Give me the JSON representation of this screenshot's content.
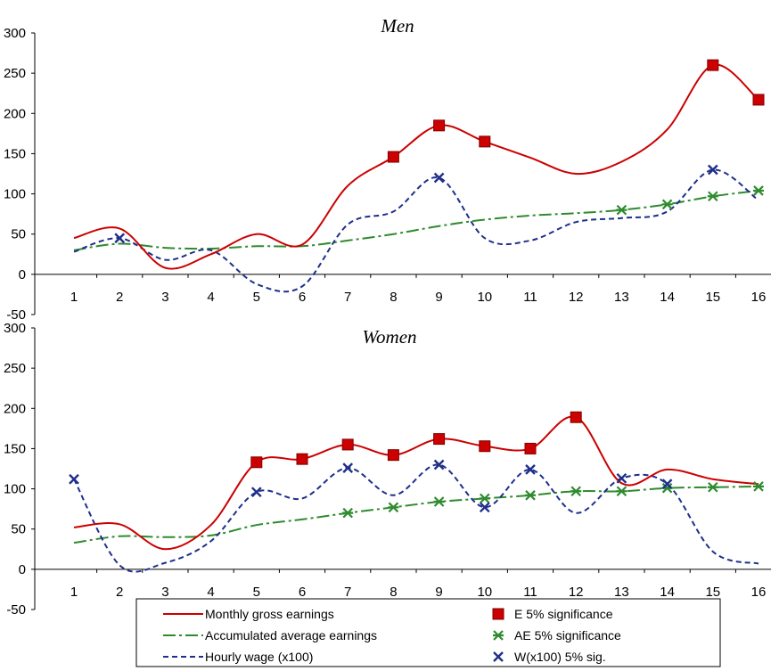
{
  "chart_data": [
    {
      "type": "line",
      "title": "Men",
      "categories": [
        "1",
        "2",
        "3",
        "4",
        "5",
        "6",
        "7",
        "8",
        "9",
        "10",
        "11",
        "12",
        "13",
        "14",
        "15",
        "16"
      ],
      "ylim": [
        -50,
        300
      ],
      "yticks": [
        -50,
        0,
        50,
        100,
        150,
        200,
        250,
        300
      ],
      "series": [
        {
          "name": "Monthly gross earnings",
          "color": "#cc0000",
          "style": "solid",
          "values": [
            45,
            57,
            8,
            25,
            50,
            37,
            110,
            146,
            185,
            165,
            145,
            125,
            140,
            180,
            260,
            217
          ]
        },
        {
          "name": "Accumulated average earnings",
          "color": "#2e8b2e",
          "style": "dashdot",
          "values": [
            30,
            38,
            33,
            32,
            35,
            35,
            42,
            50,
            60,
            68,
            73,
            76,
            80,
            87,
            97,
            104
          ]
        },
        {
          "name": "Hourly wage (x100)",
          "color": "#1f2f8a",
          "style": "dashed",
          "values": [
            28,
            45,
            18,
            30,
            -12,
            -15,
            62,
            78,
            120,
            45,
            42,
            65,
            70,
            78,
            130,
            92
          ]
        }
      ],
      "markers": {
        "E 5% significance": [
          8,
          9,
          10,
          15,
          16
        ],
        "AE 5% significance": [
          13,
          14,
          15,
          16
        ],
        "W(x100) 5% sig.": [
          2,
          9,
          15
        ]
      }
    },
    {
      "type": "line",
      "title": "Women",
      "categories": [
        "1",
        "2",
        "3",
        "4",
        "5",
        "6",
        "7",
        "8",
        "9",
        "10",
        "11",
        "12",
        "13",
        "14",
        "15",
        "16"
      ],
      "ylim": [
        -50,
        300
      ],
      "yticks": [
        -50,
        0,
        50,
        100,
        150,
        200,
        250,
        300
      ],
      "series": [
        {
          "name": "Monthly gross earnings",
          "color": "#cc0000",
          "style": "solid",
          "values": [
            52,
            56,
            25,
            55,
            133,
            137,
            155,
            142,
            162,
            153,
            150,
            189,
            107,
            124,
            112,
            106
          ]
        },
        {
          "name": "Accumulated average earnings",
          "color": "#2e8b2e",
          "style": "dashdot",
          "values": [
            33,
            41,
            40,
            42,
            55,
            62,
            70,
            77,
            84,
            88,
            92,
            97,
            97,
            101,
            102,
            103
          ]
        },
        {
          "name": "Hourly wage (x100)",
          "color": "#1f2f8a",
          "style": "dashed",
          "values": [
            112,
            5,
            8,
            35,
            96,
            88,
            126,
            92,
            130,
            77,
            124,
            70,
            113,
            106,
            22,
            7
          ]
        }
      ],
      "markers": {
        "E 5% significance": [
          5,
          6,
          7,
          8,
          9,
          10,
          11,
          12
        ],
        "AE 5% significance": [
          7,
          8,
          9,
          10,
          11,
          12,
          13,
          14,
          15,
          16
        ],
        "W(x100) 5% sig.": [
          1,
          5,
          7,
          9,
          10,
          11,
          13,
          14
        ]
      }
    }
  ],
  "legend": {
    "items": [
      {
        "label": "Monthly gross earnings",
        "kind": "solid-line",
        "color": "#cc0000"
      },
      {
        "label": "E 5% significance",
        "kind": "square",
        "color": "#cc0000"
      },
      {
        "label": "Accumulated average earnings",
        "kind": "dashdot-line",
        "color": "#2e8b2e"
      },
      {
        "label": "AE 5% significance",
        "kind": "asterisk",
        "color": "#2e8b2e"
      },
      {
        "label": "Hourly wage (x100)",
        "kind": "dashed-line",
        "color": "#1f2f8a"
      },
      {
        "label": "W(x100) 5% sig.",
        "kind": "cross",
        "color": "#1f2f8a"
      }
    ]
  }
}
